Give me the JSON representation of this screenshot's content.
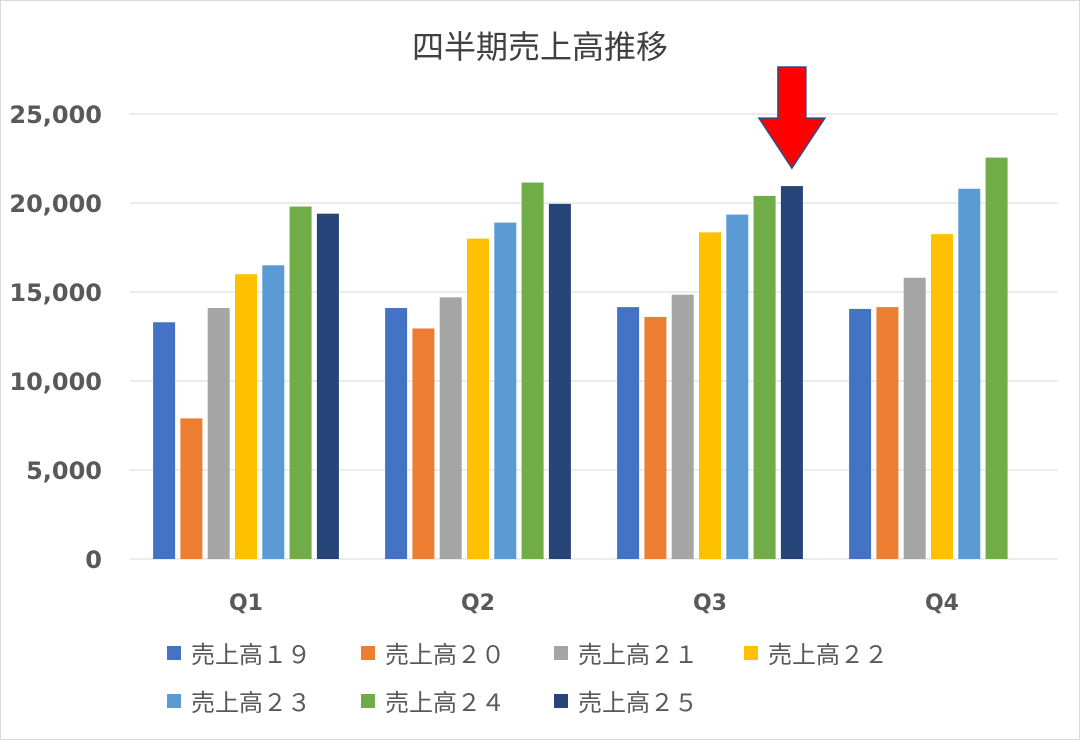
{
  "chart_data": {
    "type": "bar",
    "title": "四半期売上高推移",
    "xlabel": "",
    "ylabel": "",
    "categories": [
      "Q1",
      "Q2",
      "Q3",
      "Q4"
    ],
    "ylim": [
      0,
      25000
    ],
    "yticks": [
      0,
      5000,
      10000,
      15000,
      20000,
      25000
    ],
    "ytick_labels": [
      "0",
      "5,000",
      "10,000",
      "15,000",
      "20,000",
      "25,000"
    ],
    "grid": true,
    "legend_position": "bottom",
    "series": [
      {
        "name": "売上高１９",
        "color": "#4472C4",
        "values": [
          13300,
          14100,
          14150,
          14050
        ]
      },
      {
        "name": "売上高２０",
        "color": "#ED7D31",
        "values": [
          7900,
          12950,
          13600,
          14150
        ]
      },
      {
        "name": "売上高２１",
        "color": "#A5A5A5",
        "values": [
          14100,
          14700,
          14850,
          15800
        ]
      },
      {
        "name": "売上高２２",
        "color": "#FFC000",
        "values": [
          16000,
          18000,
          18350,
          18250
        ]
      },
      {
        "name": "売上高２３",
        "color": "#5B9BD5",
        "values": [
          16500,
          18900,
          19350,
          20800
        ]
      },
      {
        "name": "売上高２４",
        "color": "#70AD47",
        "values": [
          19800,
          21150,
          20400,
          22550
        ]
      },
      {
        "name": "売上高２５",
        "color": "#264478",
        "values": [
          19400,
          19950,
          20950,
          null
        ]
      }
    ],
    "annotation": {
      "type": "arrow",
      "color": "#FF0000",
      "target_category": "Q3",
      "target_series": "売上高２５"
    }
  }
}
